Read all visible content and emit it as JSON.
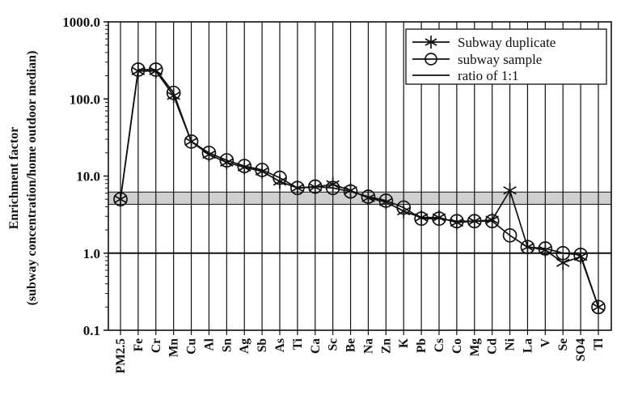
{
  "chart_data": {
    "type": "line",
    "title": "",
    "ylabel_line1": "Enrichment factor",
    "ylabel_line2": "(subway concentration/home outdoor median)",
    "xlabel": "",
    "yscale": "log",
    "ylim": [
      0.1,
      1000
    ],
    "yticks": [
      0.1,
      1,
      10,
      100,
      1000
    ],
    "ytick_labels": [
      "0.1",
      "1.0",
      "10.0",
      "100.0",
      "1000.0"
    ],
    "grid": "vertical lines at each category",
    "legend_position": "top-right",
    "categories": [
      "PM2.5",
      "Fe",
      "Cr",
      "Mn",
      "Cu",
      "Al",
      "Sn",
      "Ag",
      "Sb",
      "As",
      "Ti",
      "Ca",
      "Sc",
      "Be",
      "Na",
      "Zn",
      "K",
      "Pb",
      "Cs",
      "Co",
      "Mg",
      "Cd",
      "Ni",
      "La",
      "V",
      "Se",
      "SO4",
      "Tl"
    ],
    "series": [
      {
        "name": "Subway duplicate",
        "marker": "asterisk",
        "values": [
          5.0,
          230,
          230,
          110,
          28,
          19,
          15,
          13,
          11.5,
          8.5,
          7.0,
          7.2,
          7.8,
          6.5,
          5.2,
          4.6,
          3.5,
          2.9,
          2.9,
          2.5,
          2.6,
          2.7,
          6.5,
          1.2,
          1.1,
          0.75,
          0.9,
          0.2
        ]
      },
      {
        "name": "subway sample",
        "marker": "circle",
        "values": [
          5.0,
          240,
          240,
          120,
          28,
          20,
          16,
          13.5,
          12,
          9.5,
          7.0,
          7.3,
          7.0,
          6.3,
          5.4,
          4.8,
          3.9,
          2.8,
          2.8,
          2.6,
          2.6,
          2.6,
          1.7,
          1.2,
          1.15,
          1.0,
          0.95,
          0.2
        ]
      },
      {
        "name": "ratio of 1:1",
        "marker": "none",
        "values": [
          1,
          1,
          1,
          1,
          1,
          1,
          1,
          1,
          1,
          1,
          1,
          1,
          1,
          1,
          1,
          1,
          1,
          1,
          1,
          1,
          1,
          1,
          1,
          1,
          1,
          1,
          1,
          1
        ]
      }
    ],
    "shaded_band": {
      "ymin": 4.3,
      "ymax": 6.2,
      "color": "#cfcfcf"
    },
    "colors": {
      "line": "#111111",
      "band": "#cfcfcf",
      "background": "#ffffff"
    }
  }
}
